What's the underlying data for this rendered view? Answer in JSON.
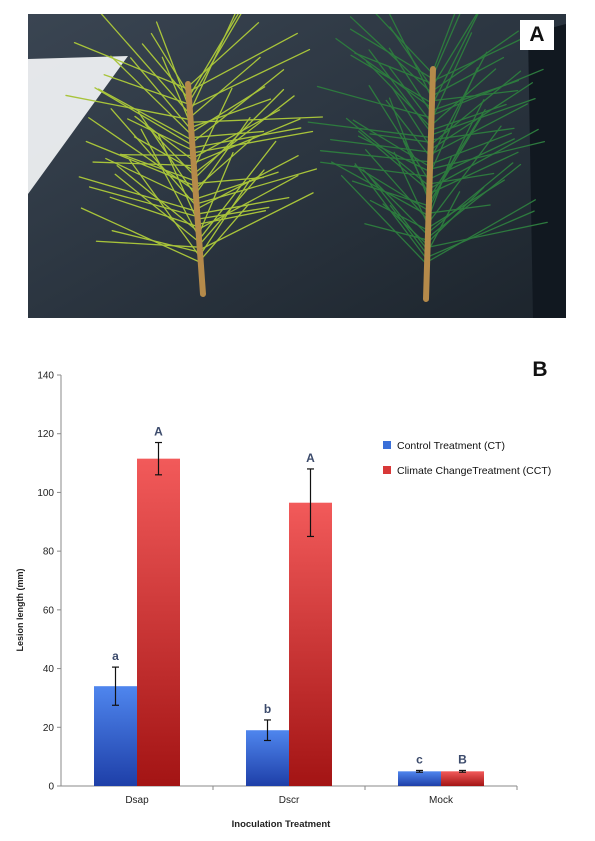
{
  "panel_a": {
    "label": "A",
    "icon": "pine-shoots-photo",
    "colors": {
      "background": "#2b3540",
      "needles_ct": "#a8c43a",
      "needles_cct": "#2d7a3e",
      "stem": "#b58a4a"
    }
  },
  "chart_data": {
    "type": "bar",
    "panel_label": "B",
    "title": "",
    "xlabel": "Inoculation Treatment",
    "ylabel": "Lesion length (mm)",
    "ylim": [
      0,
      140
    ],
    "yticks": [
      0,
      20,
      40,
      60,
      80,
      100,
      120,
      140
    ],
    "categories": [
      "Dsap",
      "Dscr",
      "Mock"
    ],
    "grid": false,
    "legend_position": "right",
    "series": [
      {
        "name": "Control Treatment (CT)",
        "color": "#3a6fd8",
        "values": [
          34,
          19,
          5
        ],
        "errors": [
          6.5,
          3.5,
          0.3
        ],
        "letters": [
          "a",
          "b",
          "c"
        ]
      },
      {
        "name": "Climate ChangeTreatment (CCT)",
        "color": "#d83838",
        "values": [
          111.5,
          96.5,
          5
        ],
        "errors": [
          5.5,
          11.5,
          0.3
        ],
        "letters": [
          "A",
          "A",
          "B"
        ]
      }
    ]
  }
}
